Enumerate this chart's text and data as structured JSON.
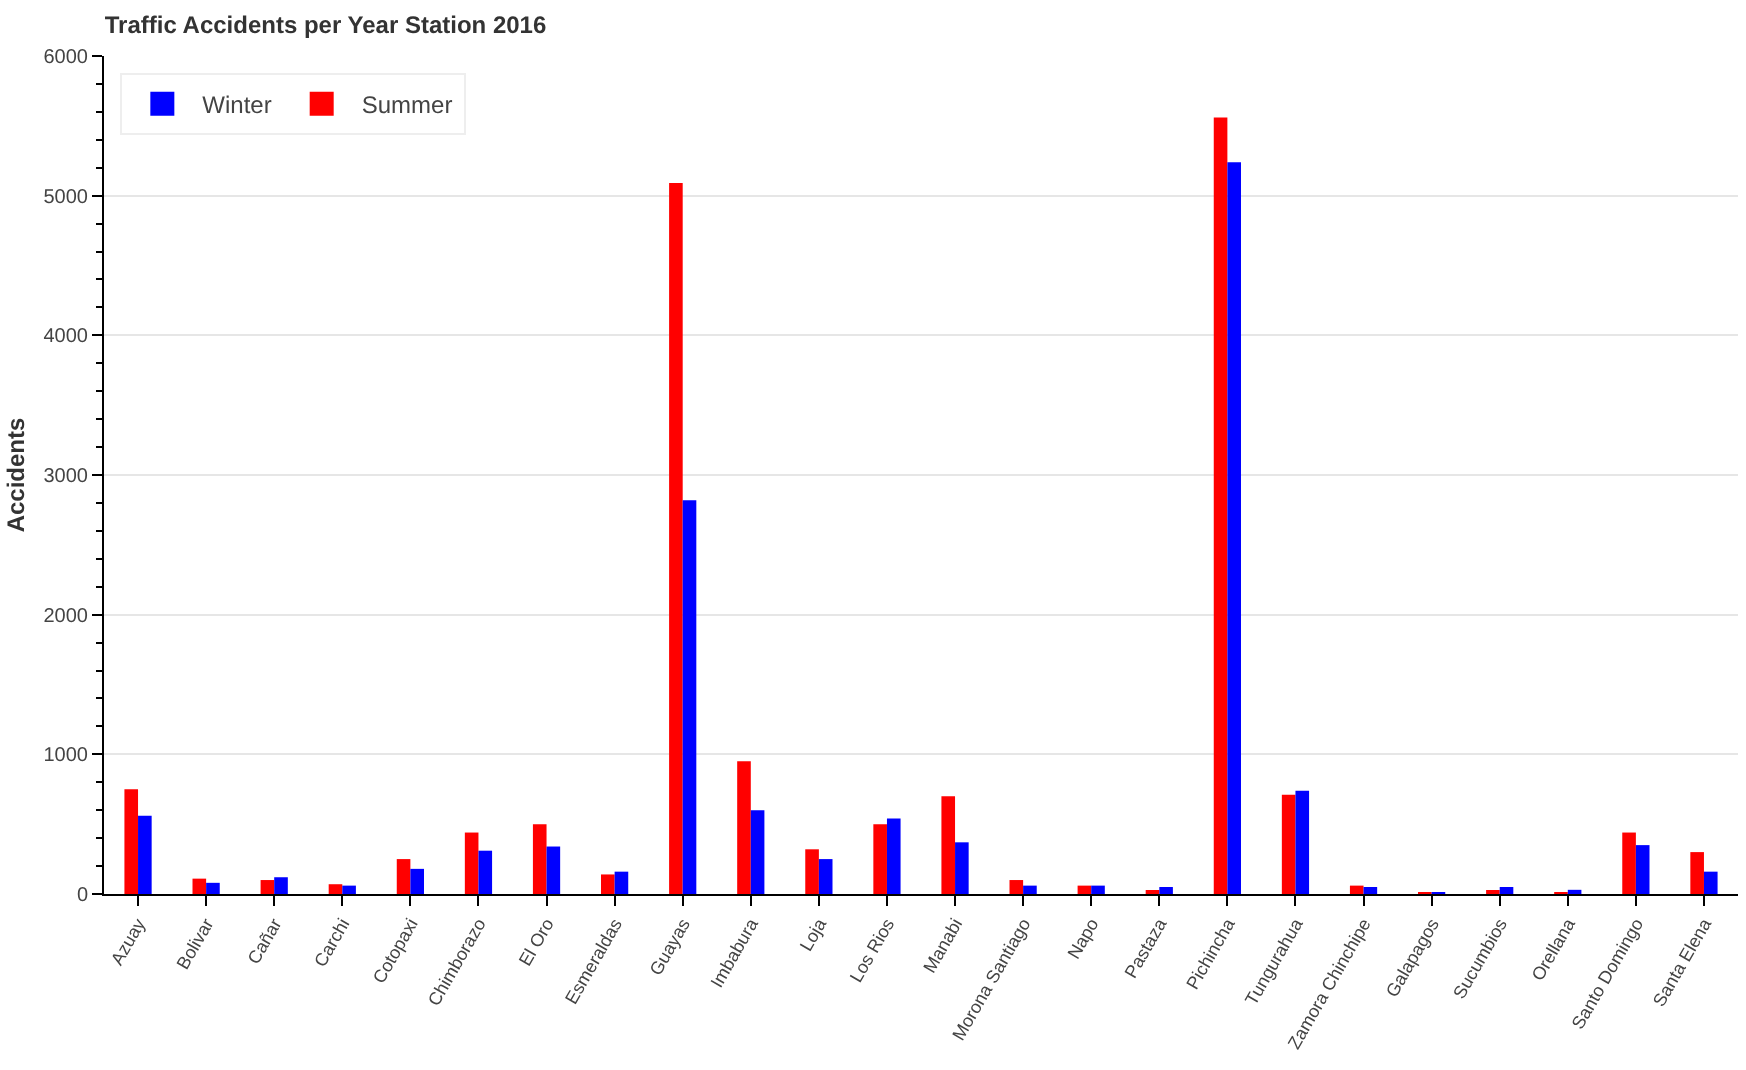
{
  "chart_data": {
    "type": "bar",
    "title": "Traffic Accidents per Year Station 2016",
    "ylabel": "Accidents",
    "categories": [
      "Azuay",
      "Bolivar",
      "Cañar",
      "Carchi",
      "Cotopaxi",
      "Chimborazo",
      "El Oro",
      "Esmeraldas",
      "Guayas",
      "Imbabura",
      "Loja",
      "Los Rios",
      "Manabi",
      "Morona Santiago",
      "Napo",
      "Pastaza",
      "Pichincha",
      "Tungurahua",
      "Zamora Chinchipe",
      "Galapagos",
      "Sucumbios",
      "Orellana",
      "Santo Domingo",
      "Santa Elena"
    ],
    "series": [
      {
        "name": "Summer",
        "color": "#ff0000",
        "values": [
          750,
          110,
          100,
          70,
          250,
          440,
          500,
          140,
          5090,
          950,
          320,
          500,
          700,
          100,
          60,
          20,
          5560,
          710,
          60,
          10,
          20,
          10,
          440,
          300
        ]
      },
      {
        "name": "Winter",
        "color": "#0000ff",
        "values": [
          560,
          80,
          120,
          60,
          180,
          310,
          340,
          160,
          2820,
          600,
          250,
          540,
          370,
          60,
          60,
          50,
          5240,
          740,
          50,
          10,
          50,
          30,
          350,
          160
        ]
      }
    ],
    "ylim": [
      0,
      6000
    ],
    "yticks": [
      0,
      1000,
      2000,
      3000,
      4000,
      5000,
      6000
    ],
    "grid": "y",
    "legend": "top left"
  }
}
